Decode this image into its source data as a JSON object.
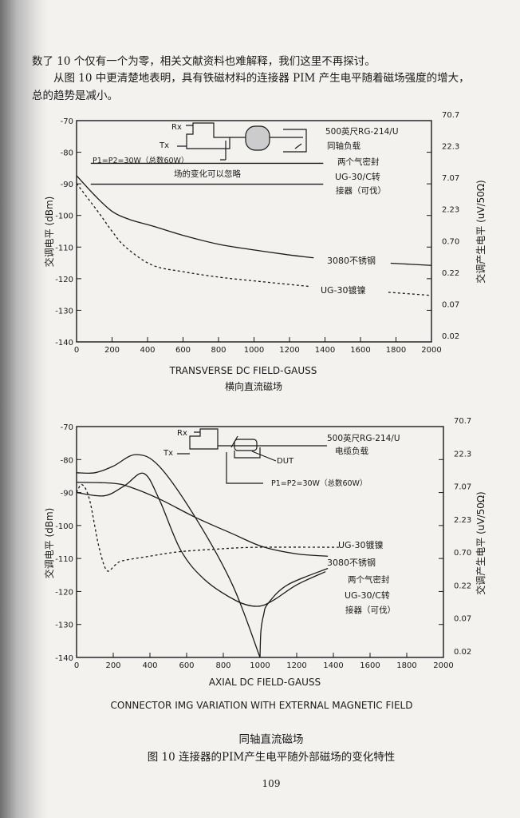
{
  "body": {
    "paragraph_lines": [
      "数了 10 个仅有一个为零，相关文献资料也难解释，我们这里不再探讨。",
      "　　从图 10 中更清楚地表明，具有铁磁材料的连接器 PIM 产生电平随着磁场强度的增大，",
      "总的趋势是减小。"
    ]
  },
  "chart_data": [
    {
      "type": "line",
      "title": "",
      "xlabel": "TRANSVERSE DC FIELD-GAUSS",
      "xlabel_cn": "横向直流磁场",
      "ylabel": "交调电平 (dBm)",
      "ylabel_right": "交调产生电平 (uV/50Ω)",
      "xlim": [
        0,
        2000
      ],
      "ylim": [
        -140,
        -70
      ],
      "xticks": [
        "0",
        "200",
        "400",
        "600",
        "800",
        "1000",
        "1200",
        "1400",
        "1600",
        "1800",
        "2000"
      ],
      "yticks": [
        "-70",
        "-80",
        "-90",
        "-100",
        "-110",
        "-120",
        "-130",
        "-140"
      ],
      "yticks_right": [
        "70.7",
        "22.3",
        "7.07",
        "2.23",
        "0.70",
        "0.22",
        "0.07",
        "0.02"
      ],
      "grid": false,
      "series": [
        {
          "name": "3080不锈钢",
          "style": "solid",
          "segments": [
            [
              [
                0,
                -87.4
              ],
              [
                100,
                -93.5
              ],
              [
                200,
                -98.7
              ],
              [
                300,
                -101.3
              ],
              [
                426,
                -103.3
              ],
              [
                600,
                -106.3
              ],
              [
                800,
                -109.1
              ],
              [
                1000,
                -110.9
              ],
              [
                1200,
                -112.5
              ],
              [
                1336,
                -113.4
              ]
            ],
            [
              [
                1770,
                -115.1
              ],
              [
                2000,
                -115.8
              ]
            ]
          ]
        },
        {
          "name": "UG-30镀镍",
          "style": "dashed",
          "segments": [
            [
              [
                0,
                -89.9
              ],
              [
                126,
                -99.2
              ],
              [
                200,
                -105
              ],
              [
                278,
                -110.1
              ],
              [
                426,
                -115.7
              ],
              [
                600,
                -117.8
              ],
              [
                800,
                -119.5
              ],
              [
                1000,
                -120.7
              ],
              [
                1320,
                -122.5
              ]
            ],
            [
              [
                1757,
                -124.3
              ],
              [
                2000,
                -125.3
              ]
            ]
          ]
        },
        {
          "style": "solid",
          "segments": [
            [
              [
                80,
                -83.5
              ],
              [
                1390,
                -83.5
              ]
            ]
          ]
        },
        {
          "style": "solid",
          "segments": [
            [
              [
                80,
                -90.1
              ],
              [
                1390,
                -90.1
              ]
            ]
          ]
        }
      ],
      "annotations": {
        "rx": "Rx",
        "tx": "Tx",
        "power": "P1=P2=30W（总数60W）",
        "load_1": "500英尺RG-214/U",
        "load_2": "同轴负载",
        "neglect": "场的变化可以忽略",
        "conn_1": "两个气密封",
        "conn_2": "UG-30/C转",
        "conn_3": "接器（可伐）",
        "label_3080": "3080不锈钢",
        "label_ug30": "UG-30镀镍"
      }
    },
    {
      "type": "line",
      "title": "CONNECTOR IMG VARIATION WITH EXTERNAL MAGNETIC FIELD",
      "xlabel": "AXIAL DC FIELD-GAUSS",
      "ylabel": "交调电平 (dBm)",
      "ylabel_right": "交调产生电平 (uV/50Ω)",
      "xlim": [
        0,
        2000
      ],
      "ylim": [
        -140,
        -70
      ],
      "xticks": [
        "0",
        "200",
        "400",
        "600",
        "800",
        "1000",
        "1200",
        "1400",
        "1600",
        "1800",
        "2000"
      ],
      "yticks": [
        "-70",
        "-80",
        "-90",
        "-100",
        "-110",
        "-120",
        "-130",
        "-140"
      ],
      "yticks_right": [
        "70.7",
        "22.3",
        "7.07",
        "2.23",
        "0.70",
        "0.22",
        "0.07",
        "0.02"
      ],
      "grid": false,
      "series": [
        {
          "style": "solid",
          "segments": [
            [
              [
                0,
                -84
              ],
              [
                100,
                -84
              ],
              [
                200,
                -82
              ],
              [
                323,
                -78.5
              ],
              [
                450,
                -82
              ],
              [
                647,
                -97.5
              ],
              [
                850,
                -118
              ],
              [
                1000,
                -140
              ]
            ],
            [
              [
                1000,
                -140
              ],
              [
                1005,
                -132
              ],
              [
                1020,
                -127
              ],
              [
                1043,
                -123.7
              ],
              [
                1150,
                -118
              ],
              [
                1370,
                -113
              ]
            ]
          ]
        },
        {
          "style": "solid",
          "segments": [
            [
              [
                0,
                -90
              ],
              [
                150,
                -91
              ],
              [
                260,
                -88
              ],
              [
                366,
                -84.2
              ],
              [
                450,
                -92
              ],
              [
                569,
                -107.6
              ],
              [
                700,
                -116.5
              ],
              [
                870,
                -122.8
              ],
              [
                983,
                -124.5
              ],
              [
                1069,
                -122.8
              ],
              [
                1200,
                -118
              ],
              [
                1357,
                -114
              ]
            ]
          ]
        },
        {
          "style": "solid",
          "segments": [
            [
              [
                0,
                -86.9
              ],
              [
                200,
                -87.2
              ],
              [
                300,
                -88.5
              ],
              [
                453,
                -92
              ],
              [
                647,
                -97.5
              ],
              [
                850,
                -102.5
              ],
              [
                1013,
                -106.4
              ],
              [
                1200,
                -108.6
              ],
              [
                1370,
                -109.3
              ]
            ]
          ]
        },
        {
          "name": "UG-30镀镍",
          "style": "dashed",
          "segments": [
            [
              [
                0,
                -90
              ],
              [
                30,
                -87.6
              ],
              [
                70,
                -92
              ],
              [
                120,
                -106
              ],
              [
                164,
                -113.6
              ],
              [
                210,
                -112
              ],
              [
                250,
                -110.7
              ],
              [
                400,
                -109.3
              ],
              [
                552,
                -108
              ],
              [
                750,
                -107.2
              ],
              [
                983,
                -106.6
              ],
              [
                1430,
                -106.6
              ]
            ]
          ]
        }
      ],
      "annotations": {
        "rx": "Rx",
        "tx": "Tx",
        "dut": "DUT",
        "power": "P1=P2=30W（总数60W）",
        "load_1": "500英尺RG-214/U",
        "load_2": "电缆负载",
        "label_ug30": "UG-30镀镍",
        "label_3080": "3080不锈钢",
        "conn_1": "两个气密封",
        "conn_2": "UG-30/C转",
        "conn_3": "接器（可伐）",
        "xlabel_cn": "同轴直流磁场"
      }
    }
  ],
  "caption": "图 10 连接器的PIM产生电平随外部磁场的变化特性",
  "page_number": "109"
}
